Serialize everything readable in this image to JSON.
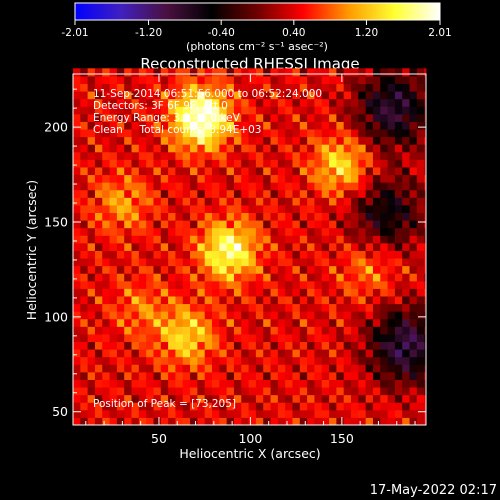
{
  "colorbar": {
    "ticks": [
      "-2.01",
      "-1.20",
      "-0.40",
      "0.40",
      "1.20",
      "2.01"
    ],
    "unit_label": "(photons cm⁻² s⁻¹ asec⁻²)",
    "stops": [
      "#0000ff",
      "#4020c0",
      "#4a1040",
      "#000000",
      "#700000",
      "#ff0000",
      "#ff9a00",
      "#ffff30",
      "#ffffff"
    ]
  },
  "chart_data": {
    "type": "heatmap",
    "title": "Reconstructed RHESSI Image",
    "xlabel": "Heliocentric X (arcsec)",
    "ylabel": "Heliocentric Y (arcsec)",
    "xlim": [
      3,
      196
    ],
    "ylim": [
      43,
      228
    ],
    "xticks": [
      50,
      100,
      150
    ],
    "yticks": [
      50,
      100,
      150,
      200
    ],
    "info_lines": [
      "11-Sep-2014 06:51:56.000 to 06:52:24.000",
      "Detectors: 3F 6F 9F, Att 0",
      "Energy Range: 3.0 - 6.0 keV",
      "Clean     Total counts: 3.94E+03"
    ],
    "peak_label": "Position of Peak = [73,205]",
    "peak_position": [
      73,
      205
    ],
    "sources": [
      {
        "x": 73,
        "y": 205,
        "intensity": 2.01
      },
      {
        "x": 88,
        "y": 135,
        "intensity": 1.6
      },
      {
        "x": 150,
        "y": 180,
        "intensity": 1.25
      },
      {
        "x": 65,
        "y": 90,
        "intensity": 1.2
      },
      {
        "x": 30,
        "y": 160,
        "intensity": 0.9
      },
      {
        "x": 165,
        "y": 125,
        "intensity": 0.8
      },
      {
        "x": 40,
        "y": 105,
        "intensity": 0.75
      }
    ],
    "negative_regions": [
      {
        "x": 178,
        "y": 210,
        "intensity": -1.0
      },
      {
        "x": 185,
        "y": 85,
        "intensity": -1.1
      },
      {
        "x": 175,
        "y": 155,
        "intensity": -0.7
      }
    ]
  },
  "footer": {
    "timestamp": "17-May-2022 02:17"
  }
}
